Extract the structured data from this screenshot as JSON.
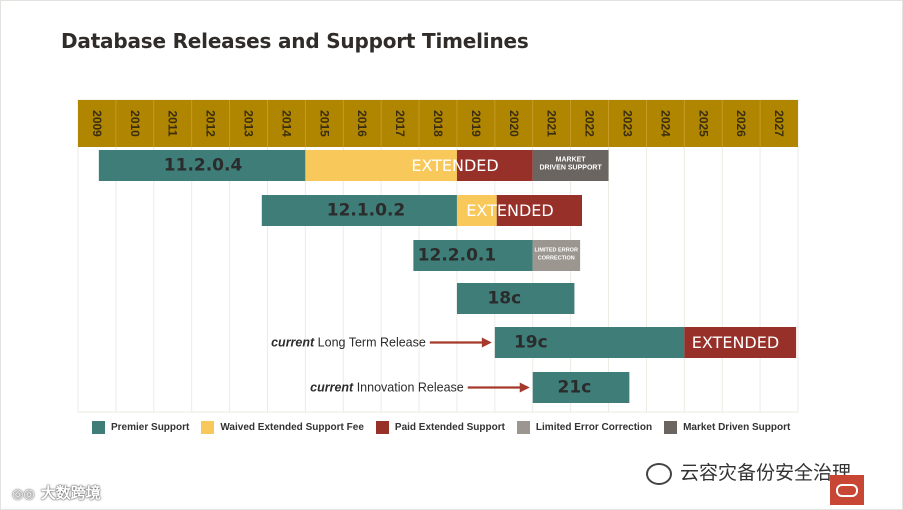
{
  "title": "Database Releases and Support Timelines",
  "colors": {
    "header": "#b08500",
    "premier": "#3e7d78",
    "waived": "#f8c95a",
    "paid": "#98302a",
    "limited": "#9c9690",
    "market": "#6b6561",
    "arrow": "#a5392b"
  },
  "chart_data": {
    "type": "gantt",
    "title": "Database Releases and Support Timelines",
    "x_axis": {
      "years": [
        "2009",
        "2010",
        "2011",
        "2012",
        "2013",
        "2014",
        "2015",
        "2016",
        "2017",
        "2018",
        "2019",
        "2020",
        "2021",
        "2022",
        "2023",
        "2024",
        "2025",
        "2026",
        "2027"
      ],
      "range": [
        2009,
        2028
      ]
    },
    "rows": [
      {
        "release": "11.2.0.4",
        "segments": [
          {
            "type": "premier",
            "start": 2009.55,
            "end": 2015.0
          },
          {
            "type": "waived",
            "start": 2015.0,
            "end": 2019.0
          },
          {
            "type": "paid",
            "start": 2019.0,
            "end": 2021.0
          },
          {
            "type": "market",
            "start": 2021.0,
            "end": 2023.0
          }
        ],
        "labels": [
          {
            "text": "11.2.0.4",
            "style": "release",
            "center": 2012.3
          },
          {
            "text": "EXTENDED",
            "style": "extended",
            "center": 2018.95
          },
          {
            "text": "MARKET DRIVEN SUPPORT",
            "style": "small",
            "center": 2022.0
          }
        ]
      },
      {
        "release": "12.1.0.2",
        "segments": [
          {
            "type": "premier",
            "start": 2013.85,
            "end": 2019.0
          },
          {
            "type": "waived",
            "start": 2019.0,
            "end": 2020.05
          },
          {
            "type": "paid",
            "start": 2020.05,
            "end": 2022.3
          }
        ],
        "labels": [
          {
            "text": "12.1.0.2",
            "style": "release",
            "center": 2016.6
          },
          {
            "text": "EXTENDED",
            "style": "extended",
            "center": 2020.4
          }
        ]
      },
      {
        "release": "12.2.0.1",
        "segments": [
          {
            "type": "premier",
            "start": 2017.85,
            "end": 2021.0
          },
          {
            "type": "limited",
            "start": 2021.0,
            "end": 2022.25
          }
        ],
        "labels": [
          {
            "text": "12.2.0.1",
            "style": "release",
            "center": 2019.0
          },
          {
            "text": "LIMITED ERROR CORRECTION",
            "style": "small",
            "center": 2021.62
          }
        ]
      },
      {
        "release": "18c",
        "segments": [
          {
            "type": "premier",
            "start": 2019.0,
            "end": 2022.1
          }
        ],
        "labels": [
          {
            "text": "18c",
            "style": "release",
            "center": 2020.25
          }
        ]
      },
      {
        "release": "19c",
        "segments": [
          {
            "type": "premier",
            "start": 2020.0,
            "end": 2025.0
          },
          {
            "type": "paid",
            "start": 2025.0,
            "end": 2027.95
          }
        ],
        "labels": [
          {
            "text": "19c",
            "style": "release",
            "center": 2020.95
          },
          {
            "text": "EXTENDED",
            "style": "extended",
            "center": 2026.35
          }
        ]
      },
      {
        "release": "21c",
        "segments": [
          {
            "type": "premier",
            "start": 2021.0,
            "end": 2023.55
          }
        ],
        "labels": [
          {
            "text": "21c",
            "style": "release",
            "center": 2022.1
          }
        ]
      }
    ],
    "annotations": [
      {
        "prefix": "current",
        "text": " Long Term Release",
        "row": 4,
        "arrow_to": 2020.0
      },
      {
        "prefix": "current",
        "text": " Innovation Release",
        "row": 5,
        "arrow_to": 2021.0
      }
    ],
    "legend": [
      {
        "key": "premier",
        "label": "Premier Support"
      },
      {
        "key": "waived",
        "label": "Waived Extended Support Fee"
      },
      {
        "key": "paid",
        "label": "Paid Extended Support"
      },
      {
        "key": "limited",
        "label": "Limited Error Correction"
      },
      {
        "key": "market",
        "label": "Market Driven Support"
      }
    ]
  },
  "watermarks": {
    "left": "大数跨境",
    "right": "云容灾备份安全治理"
  }
}
